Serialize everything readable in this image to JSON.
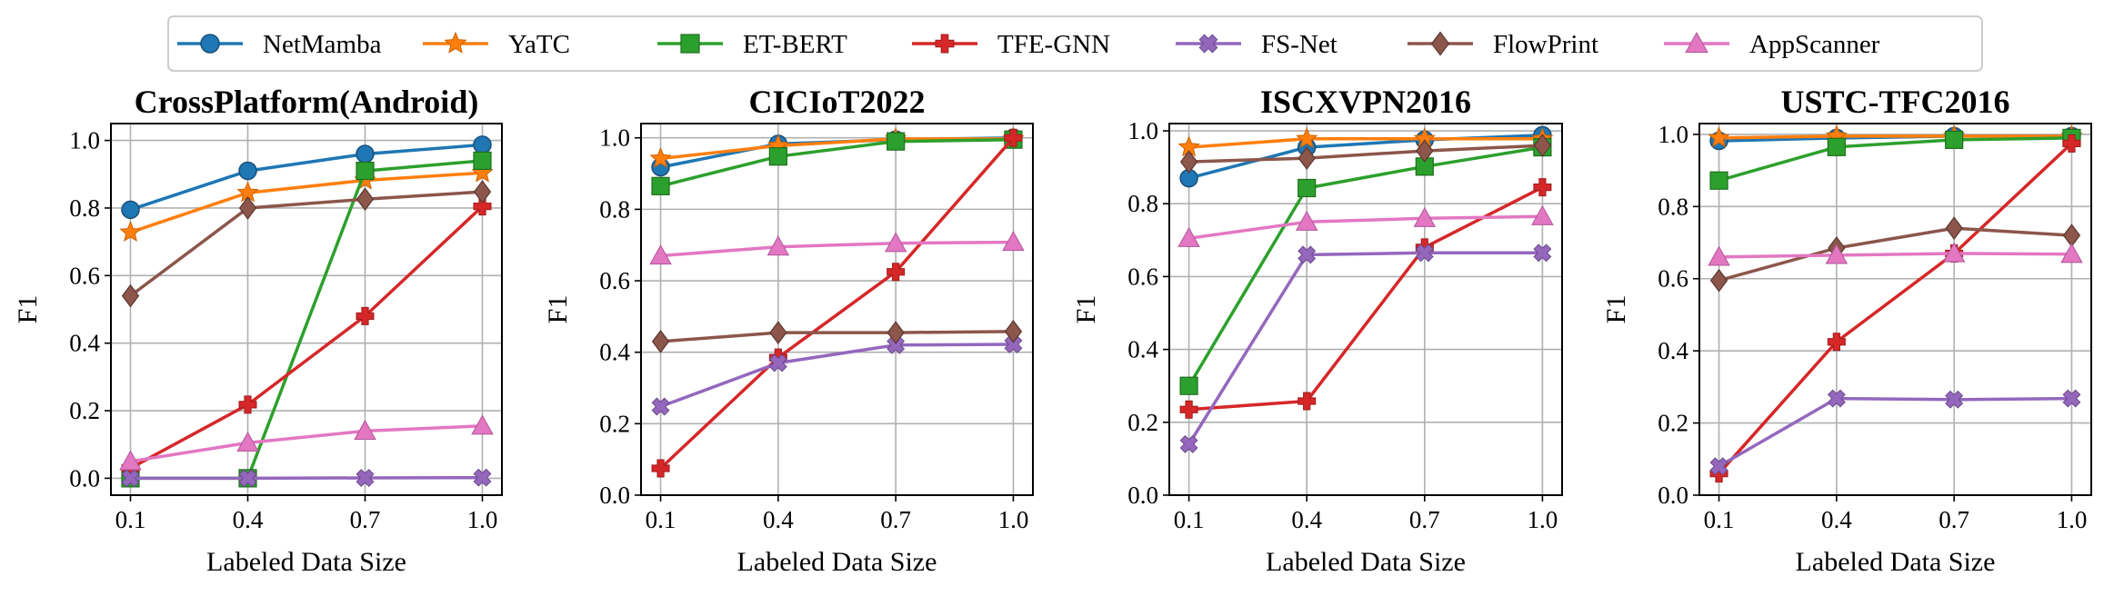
{
  "legend": [
    {
      "name": "NetMamba",
      "color": "#1f77b4",
      "marker": "circle"
    },
    {
      "name": "YaTC",
      "color": "#ff7f0e",
      "marker": "star"
    },
    {
      "name": "ET-BERT",
      "color": "#2ca02c",
      "marker": "square"
    },
    {
      "name": "TFE-GNN",
      "color": "#d62728",
      "marker": "plus"
    },
    {
      "name": "FS-Net",
      "color": "#9467bd",
      "marker": "x"
    },
    {
      "name": "FlowPrint",
      "color": "#8c564b",
      "marker": "diamond"
    },
    {
      "name": "AppScanner",
      "color": "#e377c2",
      "marker": "triangle"
    }
  ],
  "chart_data": [
    {
      "type": "line",
      "title": "CrossPlatform(Android)",
      "xlabel": "Labeled Data Size",
      "ylabel": "F1",
      "x": [
        0.1,
        0.4,
        0.7,
        1.0
      ],
      "xticks": [
        "0.1",
        "0.4",
        "0.7",
        "1.0"
      ],
      "ylim": [
        -0.05,
        1.05
      ],
      "yticks": [
        0.0,
        0.2,
        0.4,
        0.6,
        0.8,
        1.0
      ],
      "grid": true,
      "series": [
        {
          "name": "NetMamba",
          "values": [
            0.795,
            0.91,
            0.96,
            0.987
          ]
        },
        {
          "name": "YaTC",
          "values": [
            0.728,
            0.845,
            0.882,
            0.904
          ]
        },
        {
          "name": "ET-BERT",
          "values": [
            0.0,
            0.0,
            0.91,
            0.94
          ]
        },
        {
          "name": "TFE-GNN",
          "values": [
            0.03,
            0.218,
            0.48,
            0.805
          ]
        },
        {
          "name": "FS-Net",
          "values": [
            0.0,
            0.0,
            0.001,
            0.002
          ]
        },
        {
          "name": "FlowPrint",
          "values": [
            0.54,
            0.8,
            0.826,
            0.848
          ]
        },
        {
          "name": "AppScanner",
          "values": [
            0.05,
            0.105,
            0.14,
            0.155
          ]
        }
      ]
    },
    {
      "type": "line",
      "title": "CICIoT2022",
      "xlabel": "Labeled Data Size",
      "ylabel": "F1",
      "x": [
        0.1,
        0.4,
        0.7,
        1.0
      ],
      "xticks": [
        "0.1",
        "0.4",
        "0.7",
        "1.0"
      ],
      "ylim": [
        0.0,
        1.04
      ],
      "yticks": [
        0.0,
        0.2,
        0.4,
        0.6,
        0.8,
        1.0
      ],
      "grid": true,
      "series": [
        {
          "name": "NetMamba",
          "values": [
            0.918,
            0.983,
            0.995,
            1.0
          ]
        },
        {
          "name": "YaTC",
          "values": [
            0.942,
            0.978,
            0.997,
            0.997
          ]
        },
        {
          "name": "ET-BERT",
          "values": [
            0.865,
            0.948,
            0.99,
            0.995
          ]
        },
        {
          "name": "TFE-GNN",
          "values": [
            0.075,
            0.385,
            0.625,
            1.0
          ]
        },
        {
          "name": "FS-Net",
          "values": [
            0.248,
            0.37,
            0.42,
            0.422
          ]
        },
        {
          "name": "FlowPrint",
          "values": [
            0.43,
            0.455,
            0.455,
            0.458
          ]
        },
        {
          "name": "AppScanner",
          "values": [
            0.67,
            0.695,
            0.705,
            0.708
          ]
        }
      ]
    },
    {
      "type": "line",
      "title": "ISCXVPN2016",
      "xlabel": "Labeled Data Size",
      "ylabel": "F1",
      "x": [
        0.1,
        0.4,
        0.7,
        1.0
      ],
      "xticks": [
        "0.1",
        "0.4",
        "0.7",
        "1.0"
      ],
      "ylim": [
        0.0,
        1.02
      ],
      "yticks": [
        0.0,
        0.2,
        0.4,
        0.6,
        0.8,
        1.0
      ],
      "grid": true,
      "series": [
        {
          "name": "NetMamba",
          "values": [
            0.87,
            0.955,
            0.975,
            0.988
          ]
        },
        {
          "name": "YaTC",
          "values": [
            0.955,
            0.978,
            0.978,
            0.978
          ]
        },
        {
          "name": "ET-BERT",
          "values": [
            0.3,
            0.843,
            0.902,
            0.955
          ]
        },
        {
          "name": "TFE-GNN",
          "values": [
            0.235,
            0.258,
            0.68,
            0.845
          ]
        },
        {
          "name": "FS-Net",
          "values": [
            0.14,
            0.66,
            0.665,
            0.665
          ]
        },
        {
          "name": "FlowPrint",
          "values": [
            0.915,
            0.925,
            0.945,
            0.96
          ]
        },
        {
          "name": "AppScanner",
          "values": [
            0.705,
            0.75,
            0.76,
            0.765
          ]
        }
      ]
    },
    {
      "type": "line",
      "title": "USTC-TFC2016",
      "xlabel": "Labeled Data Size",
      "ylabel": "F1",
      "x": [
        0.1,
        0.4,
        0.7,
        1.0
      ],
      "xticks": [
        "0.1",
        "0.4",
        "0.7",
        "1.0"
      ],
      "ylim": [
        0.0,
        1.03
      ],
      "yticks": [
        0.0,
        0.2,
        0.4,
        0.6,
        0.8,
        1.0
      ],
      "grid": true,
      "series": [
        {
          "name": "NetMamba",
          "values": [
            0.982,
            0.99,
            0.995,
            0.995
          ]
        },
        {
          "name": "YaTC",
          "values": [
            0.99,
            0.995,
            0.995,
            0.995
          ]
        },
        {
          "name": "ET-BERT",
          "values": [
            0.872,
            0.965,
            0.985,
            0.99
          ]
        },
        {
          "name": "TFE-GNN",
          "values": [
            0.06,
            0.425,
            0.67,
            0.975
          ]
        },
        {
          "name": "FS-Net",
          "values": [
            0.08,
            0.268,
            0.265,
            0.268
          ]
        },
        {
          "name": "FlowPrint",
          "values": [
            0.595,
            0.685,
            0.74,
            0.72
          ]
        },
        {
          "name": "AppScanner",
          "values": [
            0.66,
            0.665,
            0.67,
            0.668
          ]
        }
      ]
    }
  ]
}
